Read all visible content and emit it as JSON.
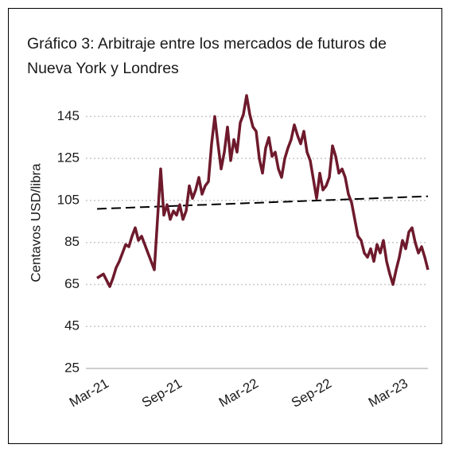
{
  "chart_data": {
    "type": "line",
    "title": "Gráfico 3: Arbitraje entre los mercados de futuros de Nueva York y Londres",
    "y_label": "Centavos USD/libra",
    "categories": [
      null,
      null,
      "Mar-21",
      null,
      null,
      null,
      null,
      null,
      null,
      null,
      null,
      null,
      null,
      null,
      null,
      null,
      null,
      null,
      null,
      null,
      null,
      null,
      null,
      null,
      null,
      "Sep-21",
      null,
      null,
      null,
      null,
      null,
      null,
      null,
      null,
      null,
      null,
      null,
      null,
      null,
      null,
      null,
      null,
      null,
      null,
      null,
      null,
      null,
      null,
      null,
      "Mar-22",
      null,
      null,
      null,
      null,
      null,
      null,
      null,
      null,
      null,
      null,
      null,
      null,
      null,
      null,
      null,
      null,
      null,
      null,
      null,
      null,
      null,
      null,
      "Sep-22",
      null,
      null,
      null,
      null,
      null,
      null,
      null,
      null,
      null,
      null,
      null,
      null,
      null,
      null,
      null,
      null,
      null,
      null,
      null,
      null,
      null,
      null,
      null,
      "Mar-23",
      null,
      null,
      null,
      null,
      null,
      null,
      null,
      null
    ],
    "series": [
      {
        "color": "#6e1a2c",
        "values": [
          68,
          69,
          70,
          67,
          64,
          68,
          73,
          76,
          80,
          84,
          83,
          88,
          92,
          86,
          88,
          84,
          80,
          76,
          72,
          96,
          120,
          98,
          103,
          96,
          100,
          98,
          103,
          96,
          100,
          112,
          106,
          110,
          116,
          108,
          112,
          114,
          132,
          145,
          132,
          120,
          128,
          140,
          124,
          134,
          128,
          142,
          146,
          155,
          146,
          140,
          138,
          125,
          118,
          130,
          135,
          126,
          128,
          120,
          116,
          125,
          130,
          134,
          141,
          136,
          132,
          138,
          128,
          124,
          115,
          106,
          118,
          110,
          112,
          116,
          131,
          126,
          118,
          120,
          116,
          108,
          104,
          96,
          88,
          86,
          80,
          78,
          82,
          76,
          84,
          80,
          86,
          76,
          70,
          65,
          72,
          78,
          86,
          82,
          90,
          92,
          85,
          80,
          83,
          78,
          72
        ]
      }
    ],
    "trendline": {
      "values": [
        101,
        107
      ],
      "color": "#000000",
      "dashed": true
    },
    "ylim": [
      25,
      155
    ],
    "yticks": [
      25,
      45,
      65,
      85,
      105,
      125,
      145
    ],
    "grid": true
  }
}
